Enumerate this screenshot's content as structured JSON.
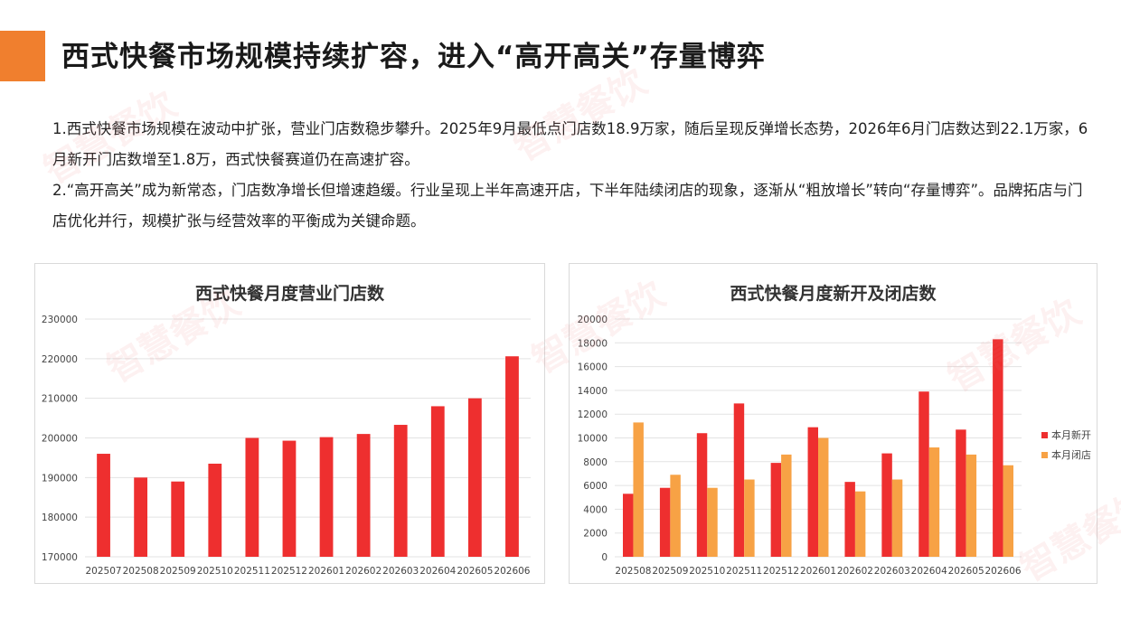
{
  "title": "西式快餐市场规模持续扩容，进入“高开高关”存量博弈",
  "paragraphs": [
    "1.西式快餐市场规模在波动中扩张，营业门店数稳步攀升。2025年9月最低点门店数18.9万家，随后呈现反弹增长态势，2026年6月门店数达到22.1万家，6月新开门店数增至1.8万，西式快餐赛道仍在高速扩容。",
    "2.“高开高关”成为新常态，门店数净增长但增速趋缓。行业呈现上半年高速开店，下半年陆续闭店的现象，逐渐从“粗放增长”转向“存量博弈”。品牌拓店与门店优化并行，规模扩张与经营效率的平衡成为关键命题。"
  ],
  "watermark": "智慧餐饮",
  "colors": {
    "accent": "#f07f2e",
    "red": "#ee2f2f",
    "orange": "#f7a245"
  },
  "chart_data": [
    {
      "type": "bar",
      "title": "西式快餐月度营业门店数",
      "categories": [
        "202507",
        "202508",
        "202509",
        "202510",
        "202511",
        "202512",
        "202601",
        "202602",
        "202603",
        "202604",
        "202605",
        "202606"
      ],
      "values": [
        196000,
        190000,
        189000,
        193500,
        200000,
        199300,
        200200,
        201000,
        203300,
        208000,
        210000,
        220600
      ],
      "ylim": [
        170000,
        230000
      ],
      "yticks": [
        "170000",
        "180000",
        "190000",
        "200000",
        "210000",
        "220000",
        "230000"
      ],
      "grid": true,
      "color": "#ee2f2f"
    },
    {
      "type": "bar",
      "title": "西式快餐月度新开及闭店数",
      "categories": [
        "202508",
        "202509",
        "202510",
        "202511",
        "202512",
        "202601",
        "202602",
        "202603",
        "202604",
        "202605",
        "202606"
      ],
      "series": [
        {
          "name": "本月新开",
          "color": "#ee2f2f",
          "values": [
            5300,
            5800,
            10400,
            12900,
            7900,
            10900,
            6300,
            8700,
            13900,
            10700,
            18300
          ]
        },
        {
          "name": "本月闭店",
          "color": "#f7a245",
          "values": [
            11300,
            6900,
            5800,
            6500,
            8600,
            10000,
            5500,
            6500,
            9200,
            8600,
            7700
          ]
        }
      ],
      "ylim": [
        0,
        20000
      ],
      "yticks": [
        "0",
        "2000",
        "4000",
        "6000",
        "8000",
        "10000",
        "12000",
        "14000",
        "16000",
        "18000",
        "20000"
      ],
      "grid": true,
      "legend": "right"
    }
  ]
}
